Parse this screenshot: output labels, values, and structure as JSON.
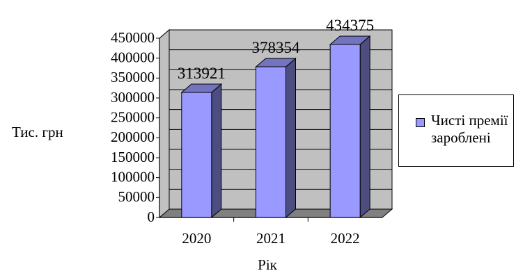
{
  "chart_data": {
    "type": "bar",
    "categories": [
      "2020",
      "2021",
      "2022"
    ],
    "series": [
      {
        "name": "Чисті премії зароблені",
        "values": [
          313921,
          378354,
          434375
        ]
      }
    ],
    "data_labels": [
      "313921",
      "378354",
      "434375"
    ],
    "yticks": [
      "0",
      "50000",
      "100000",
      "150000",
      "200000",
      "250000",
      "300000",
      "350000",
      "400000",
      "450000"
    ],
    "ylim": [
      0,
      450000
    ],
    "xlabel": "Рік",
    "ylabel": "Тис. грн",
    "grid": true,
    "legend": "right",
    "colors": {
      "bar_front": "#9999ff",
      "bar_side": "#4d4d80",
      "bar_top": "#7373bf",
      "wall": "#c0c0c0",
      "floor": "#808080"
    }
  }
}
